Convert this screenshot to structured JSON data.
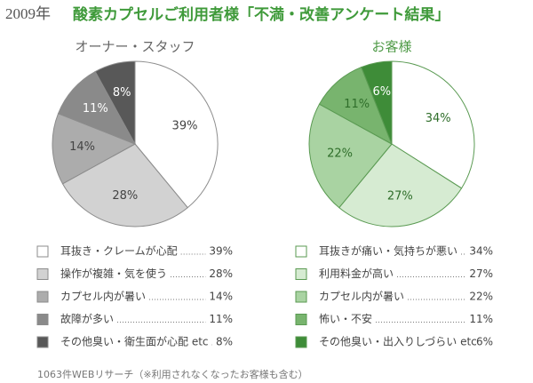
{
  "year": "2009年",
  "title": "酸素カプセルご利用者様「不満・改善アンケート結果」",
  "note": "1063件WEBリサーチ（※利用されなくなったお客様も含む）",
  "chart_data": [
    {
      "type": "pie",
      "title": "オーナー・スタッフ",
      "categories": [
        "耳抜き・クレームが心配",
        "操作が複雑・気を使う",
        "カプセル内が暑い",
        "故障が多い",
        "その他臭い・衛生面が心配 etc"
      ],
      "values": [
        39,
        28,
        14,
        11,
        8
      ],
      "value_labels": [
        "39%",
        "28%",
        "14%",
        "11%",
        "8%"
      ],
      "colors": [
        "#ffffff",
        "#d2d2d2",
        "#acacac",
        "#8a8a8a",
        "#585858"
      ],
      "edge_color": "#8c8c8c",
      "text_color": "#444444",
      "title_color": "#666666"
    },
    {
      "type": "pie",
      "title": "お客様",
      "categories": [
        "耳抜きが痛い・気持ちが悪い",
        "利用料金が高い",
        "カプセル内が暑い",
        "怖い・不安",
        "その他臭い・出入りしづらい etc"
      ],
      "values": [
        34,
        27,
        22,
        11,
        6
      ],
      "value_labels": [
        "34%",
        "27%",
        "22%",
        "11%",
        "6%"
      ],
      "colors": [
        "#ffffff",
        "#d6ebd2",
        "#a9d3a2",
        "#78b46e",
        "#3e8c38"
      ],
      "edge_color": "#5a9a52",
      "text_color": "#2f6e2a",
      "title_color": "#4f9a47"
    }
  ]
}
